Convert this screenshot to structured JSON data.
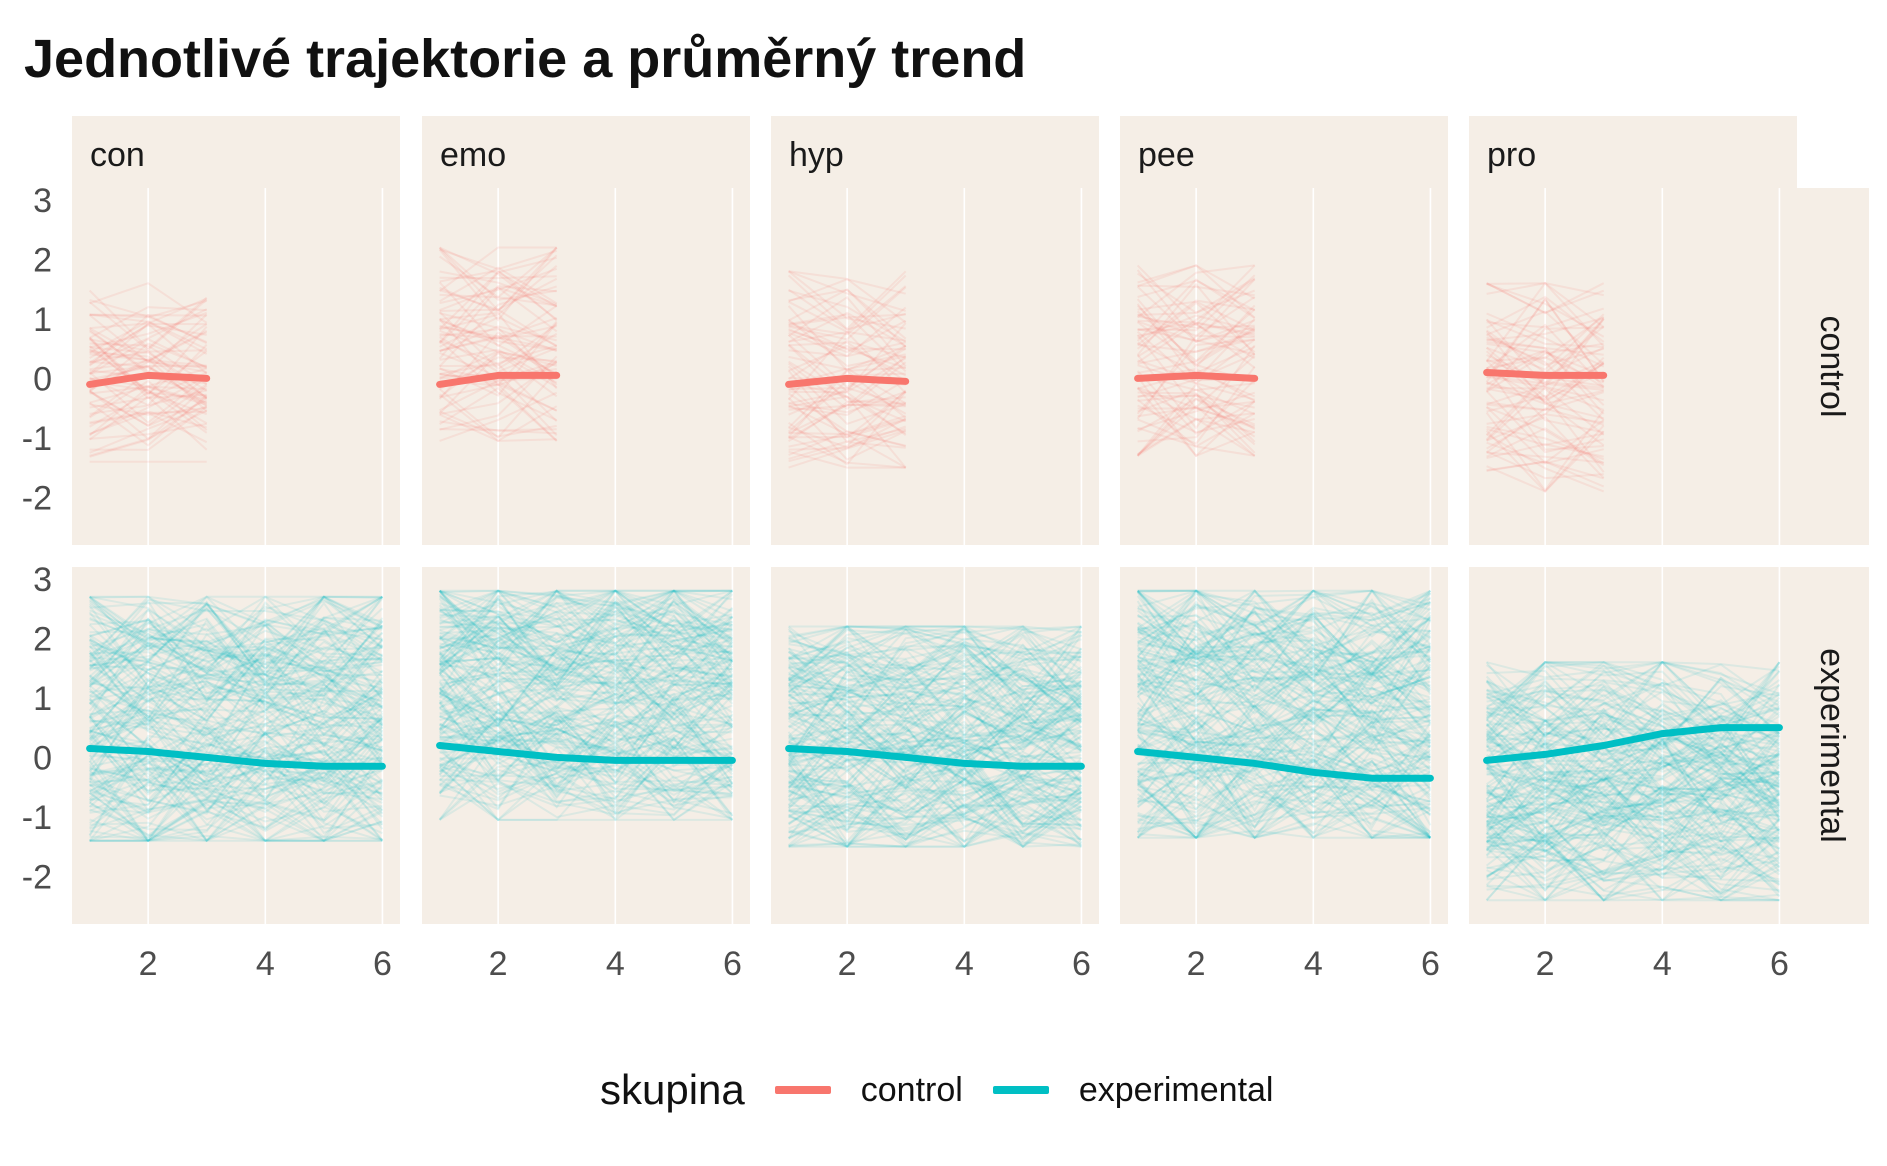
{
  "chart_data": {
    "type": "line",
    "title": "Jednotlivé trajektorie a průměrný trend",
    "facet_columns": [
      "con",
      "emo",
      "hyp",
      "pee",
      "pro"
    ],
    "facet_rows": [
      "control",
      "experimental"
    ],
    "x_ticks": [
      2,
      4,
      6
    ],
    "y_ticks": [
      3,
      2,
      1,
      0,
      -1,
      -2
    ],
    "xlim": [
      0.7,
      6.3
    ],
    "ylim": [
      -2.8,
      3.2
    ],
    "legend": {
      "title": "skupina",
      "position": "bottom",
      "entries": [
        {
          "label": "control",
          "color": "#F8766D"
        },
        {
          "label": "experimental",
          "color": "#00BFC4"
        }
      ]
    },
    "colors": {
      "control": "#F8766D",
      "experimental": "#00BFC4",
      "panel_bg": "#F5EEE6",
      "grid": "#FFFFFF"
    },
    "mean_trends": [
      {
        "column": "con",
        "group": "control",
        "x": [
          1,
          2,
          3
        ],
        "y": [
          -0.1,
          0.05,
          0.0
        ]
      },
      {
        "column": "emo",
        "group": "control",
        "x": [
          1,
          2,
          3
        ],
        "y": [
          -0.1,
          0.05,
          0.05
        ]
      },
      {
        "column": "hyp",
        "group": "control",
        "x": [
          1,
          2,
          3
        ],
        "y": [
          -0.1,
          0.0,
          -0.05
        ]
      },
      {
        "column": "pee",
        "group": "control",
        "x": [
          1,
          2,
          3
        ],
        "y": [
          0.0,
          0.05,
          0.0
        ]
      },
      {
        "column": "pro",
        "group": "control",
        "x": [
          1,
          2,
          3
        ],
        "y": [
          0.1,
          0.05,
          0.05
        ]
      },
      {
        "column": "con",
        "group": "experimental",
        "x": [
          1,
          2,
          3,
          4,
          5,
          6
        ],
        "y": [
          0.15,
          0.1,
          0.0,
          -0.1,
          -0.15,
          -0.15
        ]
      },
      {
        "column": "emo",
        "group": "experimental",
        "x": [
          1,
          2,
          3,
          4,
          5,
          6
        ],
        "y": [
          0.2,
          0.1,
          0.0,
          -0.05,
          -0.05,
          -0.05
        ]
      },
      {
        "column": "hyp",
        "group": "experimental",
        "x": [
          1,
          2,
          3,
          4,
          5,
          6
        ],
        "y": [
          0.15,
          0.1,
          0.0,
          -0.1,
          -0.15,
          -0.15
        ]
      },
      {
        "column": "pee",
        "group": "experimental",
        "x": [
          1,
          2,
          3,
          4,
          5,
          6
        ],
        "y": [
          0.1,
          0.0,
          -0.1,
          -0.25,
          -0.35,
          -0.35
        ]
      },
      {
        "column": "pro",
        "group": "experimental",
        "x": [
          1,
          2,
          3,
          4,
          5,
          6
        ],
        "y": [
          -0.05,
          0.05,
          0.2,
          0.4,
          0.5,
          0.5
        ]
      }
    ],
    "individual_trajectory_ranges": [
      {
        "column": "con",
        "group": "control",
        "x_range": [
          1,
          3
        ],
        "y_range": [
          -1.4,
          1.6
        ]
      },
      {
        "column": "emo",
        "group": "control",
        "x_range": [
          1,
          3
        ],
        "y_range": [
          -1.05,
          2.2
        ]
      },
      {
        "column": "hyp",
        "group": "control",
        "x_range": [
          1,
          3
        ],
        "y_range": [
          -1.5,
          1.8
        ]
      },
      {
        "column": "pee",
        "group": "control",
        "x_range": [
          1,
          3
        ],
        "y_range": [
          -1.3,
          1.9
        ]
      },
      {
        "column": "pro",
        "group": "control",
        "x_range": [
          1,
          3
        ],
        "y_range": [
          -1.9,
          1.6
        ]
      },
      {
        "column": "con",
        "group": "experimental",
        "x_range": [
          1,
          6
        ],
        "y_range": [
          -1.4,
          2.7
        ]
      },
      {
        "column": "emo",
        "group": "experimental",
        "x_range": [
          1,
          6
        ],
        "y_range": [
          -1.05,
          2.8
        ]
      },
      {
        "column": "hyp",
        "group": "experimental",
        "x_range": [
          1,
          6
        ],
        "y_range": [
          -1.5,
          2.2
        ]
      },
      {
        "column": "pee",
        "group": "experimental",
        "x_range": [
          1,
          6
        ],
        "y_range": [
          -1.35,
          2.8
        ]
      },
      {
        "column": "pro",
        "group": "experimental",
        "x_range": [
          1,
          6
        ],
        "y_range": [
          -2.4,
          1.6
        ]
      }
    ]
  }
}
